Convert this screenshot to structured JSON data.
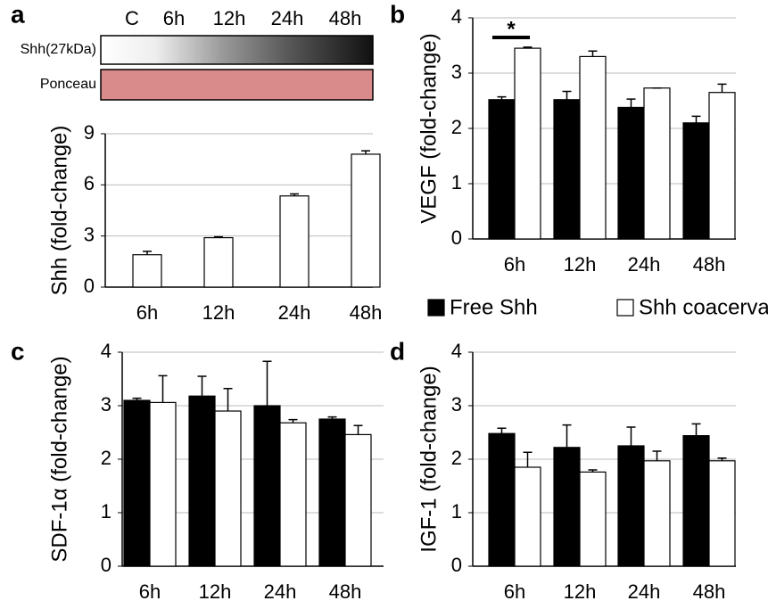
{
  "chart_data": [
    {
      "type": "bar",
      "panel_label": "a",
      "ylabel": "Shh (fold-change)",
      "blot": {
        "lanes": [
          "C",
          "6h",
          "12h",
          "24h",
          "48h"
        ],
        "rows": [
          "Shh(27kDa)",
          "Ponceau"
        ]
      },
      "categories": [
        "6h",
        "12h",
        "24h",
        "48h"
      ],
      "values": [
        1.9,
        2.9,
        5.35,
        7.8
      ],
      "errors": [
        0.2,
        0.05,
        0.12,
        0.2
      ],
      "color": "#ffffff",
      "ylim": [
        0,
        9
      ],
      "yticks": [
        0,
        3,
        6,
        9
      ],
      "grid": true
    },
    {
      "type": "grouped_bar",
      "panel_label": "b",
      "ylabel": "VEGF (fold-change)",
      "annotation": "*",
      "categories": [
        "6h",
        "12h",
        "24h",
        "48h"
      ],
      "series": [
        {
          "name": "Free Shh",
          "color": "#000000",
          "values": [
            2.52,
            2.52,
            2.38,
            2.1
          ],
          "errors": [
            0.05,
            0.15,
            0.15,
            0.12
          ]
        },
        {
          "name": "Shh coacervate",
          "color": "#ffffff",
          "values": [
            3.45,
            3.3,
            2.73,
            2.65
          ],
          "errors": [
            0.02,
            0.1,
            0,
            0.15
          ]
        }
      ],
      "ylim": [
        0,
        4
      ],
      "yticks": [
        0,
        1,
        2,
        3,
        4
      ],
      "grid": true
    },
    {
      "type": "grouped_bar",
      "panel_label": "c",
      "ylabel": "SDF-1α (fold-change)",
      "categories": [
        "6h",
        "12h",
        "24h",
        "48h"
      ],
      "series": [
        {
          "color": "#000000",
          "values": [
            3.1,
            3.18,
            3.0,
            2.75
          ],
          "errors": [
            0.04,
            0.37,
            0.83,
            0.04
          ]
        },
        {
          "color": "#ffffff",
          "values": [
            3.06,
            2.9,
            2.68,
            2.46
          ],
          "errors": [
            0.5,
            0.42,
            0.06,
            0.17
          ]
        }
      ],
      "ylim": [
        0,
        4
      ],
      "yticks": [
        0,
        1,
        2,
        3,
        4
      ],
      "grid": true
    },
    {
      "type": "grouped_bar",
      "panel_label": "d",
      "ylabel": "IGF-1 (fold-change)",
      "categories": [
        "6h",
        "12h",
        "24h",
        "48h"
      ],
      "series": [
        {
          "color": "#000000",
          "values": [
            2.48,
            2.22,
            2.25,
            2.44
          ],
          "errors": [
            0.1,
            0.42,
            0.35,
            0.22
          ]
        },
        {
          "color": "#ffffff",
          "values": [
            1.85,
            1.76,
            1.97,
            1.97
          ],
          "errors": [
            0.28,
            0.04,
            0.18,
            0.05
          ]
        }
      ],
      "ylim": [
        0,
        4
      ],
      "yticks": [
        0,
        1,
        2,
        3,
        4
      ],
      "grid": true
    }
  ]
}
